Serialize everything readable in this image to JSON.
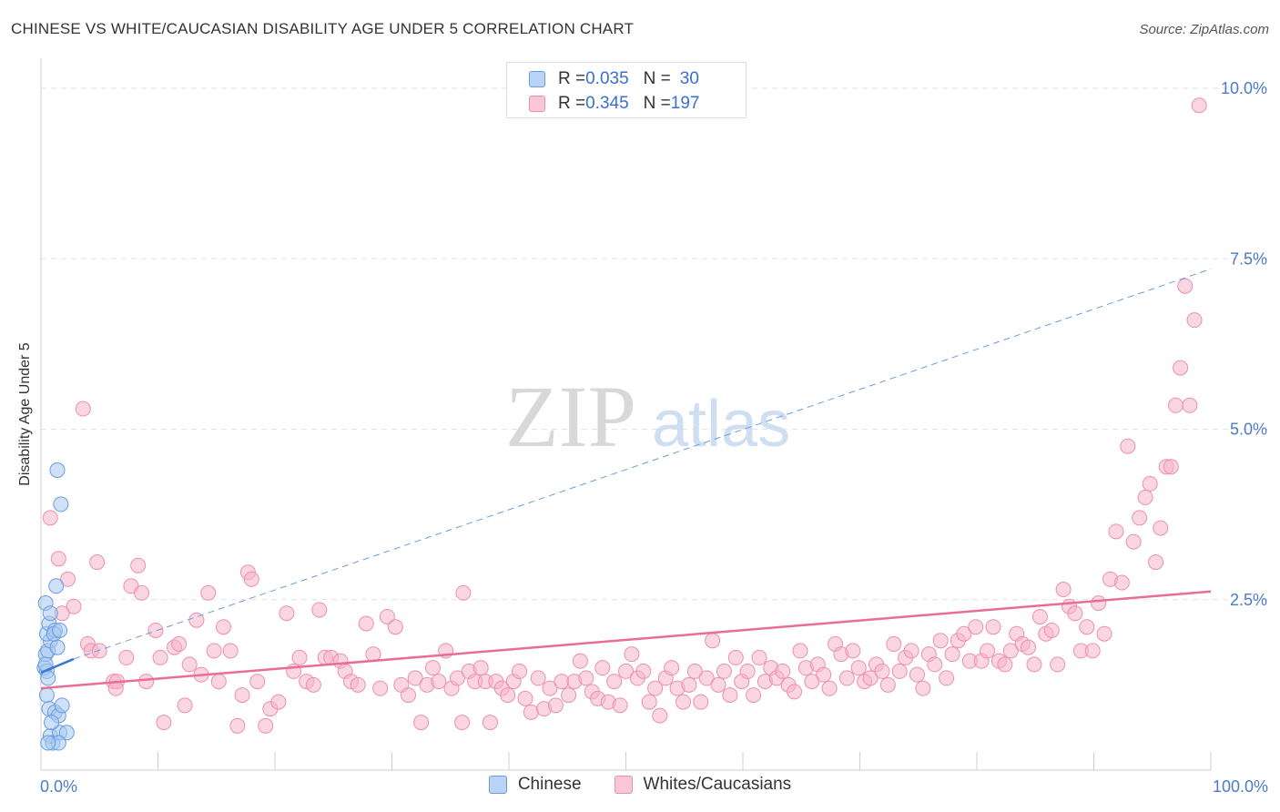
{
  "title": "CHINESE VS WHITE/CAUCASIAN DISABILITY AGE UNDER 5 CORRELATION CHART",
  "source": "Source: ZipAtlas.com",
  "watermark": {
    "zip": "ZIP",
    "atlas": "atlas"
  },
  "colors": {
    "chinese_fill": "#a8c8f0",
    "chinese_stroke": "#6a9be0",
    "chinese_line": "#3a78d0",
    "white_fill": "#f6b5cb",
    "white_stroke": "#ec8fae",
    "white_line": "#e86e98",
    "accent_text": "#3a6fcf"
  },
  "legend": {
    "rows": [
      {
        "r_label": "R = ",
        "r_value": "0.035",
        "n_label": "N = ",
        "n_value": "30"
      },
      {
        "r_label": "R = ",
        "r_value": "0.345",
        "n_label": "N = ",
        "n_value": "197"
      }
    ]
  },
  "chart_data": {
    "type": "scatter",
    "title": "CHINESE VS WHITE/CAUCASIAN DISABILITY AGE UNDER 5 CORRELATION CHART",
    "xlabel": "",
    "ylabel": "Disability Age Under 5",
    "xlim": [
      0,
      100
    ],
    "ylim": [
      0,
      10.4
    ],
    "x_tick_labels": [
      {
        "value": 0,
        "label": "0.0%"
      },
      {
        "value": 100,
        "label": "100.0%"
      }
    ],
    "y_tick_labels": [
      {
        "value": 2.5,
        "label": "2.5%"
      },
      {
        "value": 5.0,
        "label": "5.0%"
      },
      {
        "value": 7.5,
        "label": "7.5%"
      },
      {
        "value": 10.0,
        "label": "10.0%"
      }
    ],
    "x_minor_ticks": [
      10,
      20,
      30,
      40,
      50,
      60,
      70,
      80,
      90,
      100
    ],
    "series": [
      {
        "name": "Chinese",
        "r": 0.035,
        "n": 30,
        "trend_solid": {
          "x": [
            0,
            2.8
          ],
          "y": [
            1.43,
            1.63
          ]
        },
        "trend_dashed": {
          "x": [
            2.8,
            100
          ],
          "y": [
            1.63,
            7.35
          ]
        },
        "points": [
          [
            0.3,
            1.5
          ],
          [
            0.5,
            1.45
          ],
          [
            0.4,
            1.7
          ],
          [
            0.6,
            1.75
          ],
          [
            0.8,
            1.9
          ],
          [
            0.5,
            2.0
          ],
          [
            0.7,
            2.15
          ],
          [
            0.4,
            2.45
          ],
          [
            0.8,
            2.3
          ],
          [
            1.2,
            2.05
          ],
          [
            1.4,
            1.8
          ],
          [
            1.1,
            2.0
          ],
          [
            1.6,
            2.05
          ],
          [
            1.3,
            2.7
          ],
          [
            1.4,
            4.4
          ],
          [
            1.7,
            3.9
          ],
          [
            0.5,
            1.1
          ],
          [
            0.7,
            0.9
          ],
          [
            0.8,
            0.5
          ],
          [
            1.0,
            0.4
          ],
          [
            1.2,
            0.85
          ],
          [
            1.5,
            0.8
          ],
          [
            1.8,
            0.95
          ],
          [
            1.6,
            0.55
          ],
          [
            2.2,
            0.55
          ],
          [
            0.9,
            0.7
          ],
          [
            1.5,
            0.4
          ],
          [
            0.6,
            0.4
          ],
          [
            0.4,
            1.55
          ],
          [
            0.6,
            1.35
          ]
        ]
      },
      {
        "name": "Whites/Caucasians",
        "r": 0.345,
        "n": 197,
        "trend": {
          "x": [
            0,
            100
          ],
          "y": [
            1.2,
            2.62
          ]
        },
        "points": [
          [
            0.8,
            3.7
          ],
          [
            3.6,
            5.3
          ],
          [
            1.5,
            3.1
          ],
          [
            2.3,
            2.8
          ],
          [
            2.8,
            2.4
          ],
          [
            1.8,
            2.3
          ],
          [
            4.0,
            1.85
          ],
          [
            4.3,
            1.75
          ],
          [
            5.0,
            1.75
          ],
          [
            4.8,
            3.05
          ],
          [
            6.2,
            1.3
          ],
          [
            6.5,
            1.3
          ],
          [
            6.4,
            1.2
          ],
          [
            7.3,
            1.65
          ],
          [
            7.7,
            2.7
          ],
          [
            8.3,
            3.0
          ],
          [
            8.6,
            2.6
          ],
          [
            9.0,
            1.3
          ],
          [
            9.8,
            2.05
          ],
          [
            10.2,
            1.65
          ],
          [
            10.5,
            0.7
          ],
          [
            11.4,
            1.8
          ],
          [
            11.8,
            1.85
          ],
          [
            12.3,
            0.95
          ],
          [
            12.7,
            1.55
          ],
          [
            13.3,
            2.2
          ],
          [
            13.7,
            1.4
          ],
          [
            14.3,
            2.6
          ],
          [
            14.8,
            1.75
          ],
          [
            15.2,
            1.3
          ],
          [
            15.6,
            2.1
          ],
          [
            16.2,
            1.75
          ],
          [
            16.8,
            0.65
          ],
          [
            17.2,
            1.1
          ],
          [
            17.7,
            2.9
          ],
          [
            18.0,
            2.8
          ],
          [
            18.5,
            1.3
          ],
          [
            19.2,
            0.65
          ],
          [
            19.6,
            0.9
          ],
          [
            20.3,
            1.0
          ],
          [
            21.0,
            2.3
          ],
          [
            21.6,
            1.45
          ],
          [
            22.1,
            1.65
          ],
          [
            22.7,
            1.3
          ],
          [
            23.3,
            1.25
          ],
          [
            23.8,
            2.35
          ],
          [
            24.3,
            1.65
          ],
          [
            24.8,
            1.65
          ],
          [
            25.6,
            1.6
          ],
          [
            26.0,
            1.45
          ],
          [
            26.5,
            1.3
          ],
          [
            27.1,
            1.25
          ],
          [
            27.8,
            2.15
          ],
          [
            28.4,
            1.7
          ],
          [
            29.0,
            1.2
          ],
          [
            29.6,
            2.25
          ],
          [
            30.3,
            2.1
          ],
          [
            30.8,
            1.25
          ],
          [
            31.4,
            1.1
          ],
          [
            32.0,
            1.35
          ],
          [
            32.5,
            0.7
          ],
          [
            33.0,
            1.25
          ],
          [
            33.5,
            1.5
          ],
          [
            34.0,
            1.3
          ],
          [
            34.6,
            1.75
          ],
          [
            35.1,
            1.2
          ],
          [
            35.6,
            1.35
          ],
          [
            36.1,
            2.6
          ],
          [
            36.6,
            1.45
          ],
          [
            37.1,
            1.3
          ],
          [
            37.6,
            1.5
          ],
          [
            38.0,
            1.3
          ],
          [
            38.4,
            0.7
          ],
          [
            38.9,
            1.3
          ],
          [
            39.4,
            1.2
          ],
          [
            39.9,
            1.1
          ],
          [
            40.4,
            1.3
          ],
          [
            40.9,
            1.45
          ],
          [
            41.4,
            1.05
          ],
          [
            41.9,
            0.85
          ],
          [
            42.5,
            1.35
          ],
          [
            43.0,
            0.9
          ],
          [
            43.5,
            1.2
          ],
          [
            44.0,
            0.95
          ],
          [
            44.5,
            1.3
          ],
          [
            45.1,
            1.1
          ],
          [
            45.6,
            1.3
          ],
          [
            46.1,
            1.6
          ],
          [
            46.6,
            1.35
          ],
          [
            47.1,
            1.15
          ],
          [
            47.6,
            1.05
          ],
          [
            48.0,
            1.5
          ],
          [
            48.5,
            1.0
          ],
          [
            49.0,
            1.3
          ],
          [
            49.5,
            0.95
          ],
          [
            50.0,
            1.45
          ],
          [
            50.5,
            1.7
          ],
          [
            51.0,
            1.35
          ],
          [
            51.5,
            1.45
          ],
          [
            52.0,
            1.0
          ],
          [
            52.5,
            1.2
          ],
          [
            52.9,
            0.8
          ],
          [
            53.4,
            1.35
          ],
          [
            53.9,
            1.5
          ],
          [
            54.4,
            1.2
          ],
          [
            54.9,
            1.0
          ],
          [
            55.4,
            1.25
          ],
          [
            55.9,
            1.45
          ],
          [
            56.4,
            1.0
          ],
          [
            56.9,
            1.35
          ],
          [
            57.4,
            1.9
          ],
          [
            57.9,
            1.25
          ],
          [
            58.4,
            1.45
          ],
          [
            58.9,
            1.1
          ],
          [
            59.4,
            1.65
          ],
          [
            59.9,
            1.3
          ],
          [
            60.4,
            1.45
          ],
          [
            60.9,
            1.1
          ],
          [
            61.4,
            1.65
          ],
          [
            61.9,
            1.3
          ],
          [
            62.4,
            1.5
          ],
          [
            62.9,
            1.35
          ],
          [
            63.4,
            1.45
          ],
          [
            63.9,
            1.25
          ],
          [
            64.4,
            1.15
          ],
          [
            64.9,
            1.75
          ],
          [
            65.4,
            1.5
          ],
          [
            65.9,
            1.3
          ],
          [
            66.4,
            1.55
          ],
          [
            66.9,
            1.4
          ],
          [
            67.4,
            1.2
          ],
          [
            67.9,
            1.85
          ],
          [
            68.4,
            1.7
          ],
          [
            68.9,
            1.35
          ],
          [
            69.4,
            1.75
          ],
          [
            69.9,
            1.5
          ],
          [
            70.4,
            1.3
          ],
          [
            70.9,
            1.35
          ],
          [
            71.4,
            1.55
          ],
          [
            71.9,
            1.45
          ],
          [
            72.4,
            1.25
          ],
          [
            72.9,
            1.85
          ],
          [
            73.4,
            1.45
          ],
          [
            73.9,
            1.65
          ],
          [
            74.4,
            1.75
          ],
          [
            74.9,
            1.4
          ],
          [
            75.4,
            1.2
          ],
          [
            75.9,
            1.7
          ],
          [
            76.4,
            1.55
          ],
          [
            76.9,
            1.9
          ],
          [
            77.4,
            1.35
          ],
          [
            77.9,
            1.7
          ],
          [
            78.4,
            1.9
          ],
          [
            78.9,
            2.0
          ],
          [
            79.4,
            1.6
          ],
          [
            79.9,
            2.1
          ],
          [
            80.4,
            1.6
          ],
          [
            80.9,
            1.75
          ],
          [
            81.4,
            2.1
          ],
          [
            81.9,
            1.6
          ],
          [
            82.4,
            1.55
          ],
          [
            82.9,
            1.75
          ],
          [
            83.4,
            2.0
          ],
          [
            83.9,
            1.85
          ],
          [
            84.4,
            1.8
          ],
          [
            84.9,
            1.55
          ],
          [
            85.4,
            2.25
          ],
          [
            85.9,
            2.0
          ],
          [
            86.4,
            2.05
          ],
          [
            86.9,
            1.55
          ],
          [
            87.4,
            2.65
          ],
          [
            87.9,
            2.4
          ],
          [
            88.4,
            2.3
          ],
          [
            88.9,
            1.75
          ],
          [
            89.4,
            2.1
          ],
          [
            89.9,
            1.75
          ],
          [
            90.4,
            2.45
          ],
          [
            90.9,
            2.0
          ],
          [
            91.4,
            2.8
          ],
          [
            91.9,
            3.5
          ],
          [
            92.4,
            2.75
          ],
          [
            92.9,
            4.75
          ],
          [
            93.4,
            3.35
          ],
          [
            93.9,
            3.7
          ],
          [
            94.4,
            4.0
          ],
          [
            94.8,
            4.2
          ],
          [
            95.3,
            3.05
          ],
          [
            95.7,
            3.55
          ],
          [
            96.2,
            4.45
          ],
          [
            96.6,
            4.45
          ],
          [
            97.0,
            5.35
          ],
          [
            97.4,
            5.9
          ],
          [
            97.8,
            7.1
          ],
          [
            98.2,
            5.35
          ],
          [
            98.6,
            6.6
          ],
          [
            99.0,
            9.75
          ],
          [
            36.0,
            0.7
          ]
        ]
      }
    ]
  },
  "bottom_legend": [
    {
      "label": "Chinese"
    },
    {
      "label": "Whites/Caucasians"
    }
  ]
}
